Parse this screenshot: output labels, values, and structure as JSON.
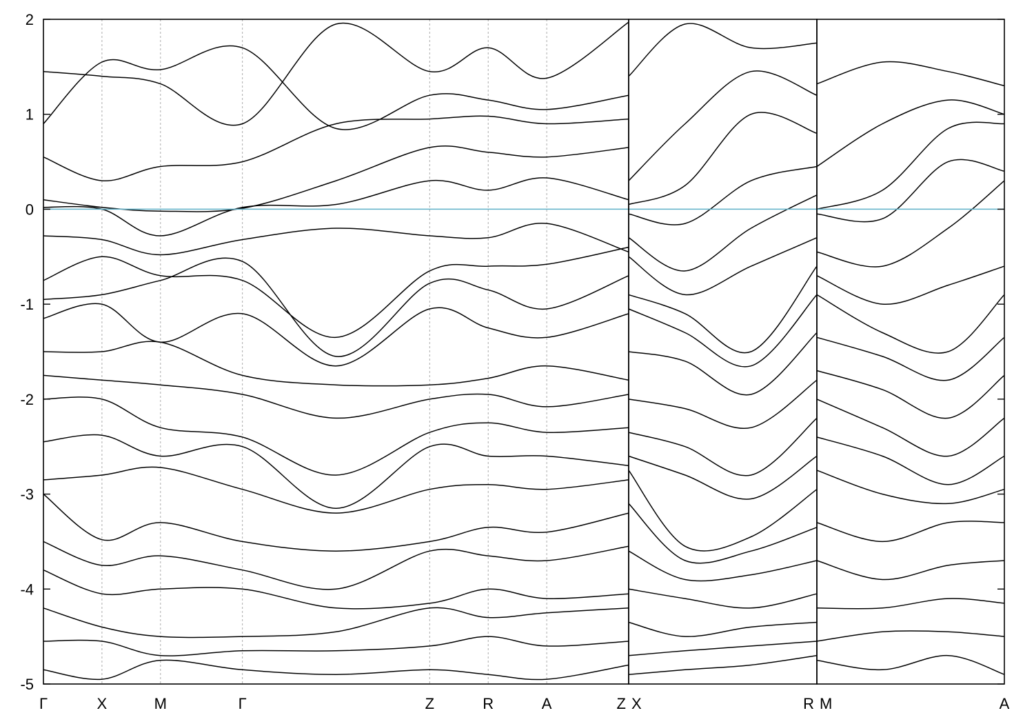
{
  "chart_data": {
    "type": "line",
    "title": "",
    "xlabel": "",
    "ylabel": "",
    "ylim": [
      -5,
      2
    ],
    "yticks": [
      -5,
      -4,
      -3,
      -2,
      -1,
      0,
      1,
      2
    ],
    "ytick_labels": [
      "-5",
      "-4",
      "-3",
      "-2",
      "-1",
      "0",
      "1",
      "2"
    ],
    "fermi_level": 0,
    "grid": "dotted vertical lines at high-symmetry points",
    "panels": [
      {
        "x_range": [
          0,
          10.0
        ],
        "kpoints": [
          {
            "label": "Γ",
            "x": 0
          },
          {
            "label": "X",
            "x": 1.0
          },
          {
            "label": "M",
            "x": 2.0
          },
          {
            "label": "Γ",
            "x": 3.4
          },
          {
            "label": "Z",
            "x": 6.6
          },
          {
            "label": "R",
            "x": 7.6
          },
          {
            "label": "A",
            "x": 8.6
          },
          {
            "label": "Z",
            "x": 10.0
          }
        ],
        "series": [
          {
            "x": [
              0,
              1.0,
              2.0,
              3.4,
              5.0,
              6.6,
              7.6,
              8.6,
              10.0
            ],
            "values": [
              1.45,
              1.4,
              1.32,
              0.9,
              1.95,
              1.45,
              1.7,
              1.38,
              1.97
            ]
          },
          {
            "x": [
              0,
              1.0,
              2.0,
              3.4,
              5.0,
              6.6,
              7.6,
              8.6,
              10.0
            ],
            "values": [
              0.9,
              1.55,
              1.47,
              1.7,
              0.85,
              1.2,
              1.15,
              1.05,
              1.2
            ]
          },
          {
            "x": [
              0,
              1.0,
              2.0,
              3.4,
              5.0,
              6.6,
              7.6,
              8.6,
              10.0
            ],
            "values": [
              0.55,
              0.3,
              0.45,
              0.5,
              0.9,
              0.95,
              0.98,
              0.9,
              0.95
            ]
          },
          {
            "x": [
              0,
              1.0,
              2.0,
              3.4,
              5.0,
              6.6,
              7.6,
              8.6,
              10.0
            ],
            "values": [
              0.1,
              0.02,
              -0.02,
              0.01,
              0.3,
              0.65,
              0.6,
              0.55,
              0.65
            ]
          },
          {
            "x": [
              0,
              1.0,
              2.0,
              3.4,
              5.0,
              6.6,
              7.6,
              8.6,
              10.0
            ],
            "values": [
              0.02,
              0.0,
              -0.28,
              0.02,
              0.05,
              0.3,
              0.2,
              0.33,
              0.1
            ]
          },
          {
            "x": [
              0,
              1.0,
              2.0,
              3.4,
              5.0,
              6.6,
              7.6,
              8.6,
              10.0
            ],
            "values": [
              -0.28,
              -0.32,
              -0.48,
              -0.32,
              -0.2,
              -0.28,
              -0.3,
              -0.15,
              -0.45
            ]
          },
          {
            "x": [
              0,
              1.0,
              2.0,
              3.4,
              5.0,
              6.6,
              7.6,
              8.6,
              10.0
            ],
            "values": [
              -0.75,
              -0.5,
              -0.7,
              -0.75,
              -1.35,
              -0.65,
              -0.6,
              -0.58,
              -0.4
            ]
          },
          {
            "x": [
              0,
              1.0,
              2.0,
              3.4,
              5.0,
              6.6,
              7.6,
              8.6,
              10.0
            ],
            "values": [
              -0.95,
              -0.9,
              -0.75,
              -0.55,
              -1.55,
              -0.78,
              -0.85,
              -1.05,
              -0.7
            ]
          },
          {
            "x": [
              0,
              1.0,
              2.0,
              3.4,
              5.0,
              6.6,
              7.6,
              8.6,
              10.0
            ],
            "values": [
              -1.15,
              -1.0,
              -1.4,
              -1.1,
              -1.65,
              -1.05,
              -1.25,
              -1.35,
              -1.1
            ]
          },
          {
            "x": [
              0,
              1.0,
              2.0,
              3.4,
              5.0,
              6.6,
              7.6,
              8.6,
              10.0
            ],
            "values": [
              -1.5,
              -1.5,
              -1.4,
              -1.75,
              -1.85,
              -1.85,
              -1.78,
              -1.65,
              -1.8
            ]
          },
          {
            "x": [
              0,
              1.0,
              2.0,
              3.4,
              5.0,
              6.6,
              7.6,
              8.6,
              10.0
            ],
            "values": [
              -1.75,
              -1.8,
              -1.85,
              -1.95,
              -2.2,
              -2.0,
              -1.95,
              -2.08,
              -1.95
            ]
          },
          {
            "x": [
              0,
              1.0,
              2.0,
              3.4,
              5.0,
              6.6,
              7.6,
              8.6,
              10.0
            ],
            "values": [
              -2.0,
              -2.0,
              -2.3,
              -2.4,
              -2.8,
              -2.35,
              -2.25,
              -2.35,
              -2.3
            ]
          },
          {
            "x": [
              0,
              1.0,
              2.0,
              3.4,
              5.0,
              6.6,
              7.6,
              8.6,
              10.0
            ],
            "values": [
              -2.45,
              -2.38,
              -2.6,
              -2.5,
              -3.15,
              -2.5,
              -2.6,
              -2.6,
              -2.7
            ]
          },
          {
            "x": [
              0,
              1.0,
              2.0,
              3.4,
              5.0,
              6.6,
              7.6,
              8.6,
              10.0
            ],
            "values": [
              -2.85,
              -2.8,
              -2.72,
              -2.95,
              -3.2,
              -2.95,
              -2.9,
              -2.95,
              -2.85
            ]
          },
          {
            "x": [
              0,
              1.0,
              2.0,
              3.4,
              5.0,
              6.6,
              7.6,
              8.6,
              10.0
            ],
            "values": [
              -3.0,
              -3.48,
              -3.3,
              -3.5,
              -3.6,
              -3.5,
              -3.35,
              -3.4,
              -3.2
            ]
          },
          {
            "x": [
              0,
              1.0,
              2.0,
              3.4,
              5.0,
              6.6,
              7.6,
              8.6,
              10.0
            ],
            "values": [
              -3.5,
              -3.75,
              -3.65,
              -3.8,
              -4.0,
              -3.6,
              -3.65,
              -3.7,
              -3.55
            ]
          },
          {
            "x": [
              0,
              1.0,
              2.0,
              3.4,
              5.0,
              6.6,
              7.6,
              8.6,
              10.0
            ],
            "values": [
              -3.8,
              -4.05,
              -4.0,
              -4.0,
              -4.2,
              -4.15,
              -4.0,
              -4.1,
              -4.05
            ]
          },
          {
            "x": [
              0,
              1.0,
              2.0,
              3.4,
              5.0,
              6.6,
              7.6,
              8.6,
              10.0
            ],
            "values": [
              -4.2,
              -4.4,
              -4.5,
              -4.5,
              -4.45,
              -4.2,
              -4.3,
              -4.25,
              -4.2
            ]
          },
          {
            "x": [
              0,
              1.0,
              2.0,
              3.4,
              5.0,
              6.6,
              7.6,
              8.6,
              10.0
            ],
            "values": [
              -4.55,
              -4.55,
              -4.7,
              -4.65,
              -4.65,
              -4.6,
              -4.5,
              -4.6,
              -4.55
            ]
          },
          {
            "x": [
              0,
              1.0,
              2.0,
              3.4,
              5.0,
              6.6,
              7.6,
              8.6,
              10.0
            ],
            "values": [
              -4.85,
              -4.95,
              -4.75,
              -4.85,
              -4.9,
              -4.85,
              -4.9,
              -4.95,
              -4.8
            ]
          }
        ]
      },
      {
        "x_range": [
          0,
          1.0
        ],
        "kpoints": [
          {
            "label": "X",
            "x": 0
          },
          {
            "label": "R",
            "x": 1.0
          }
        ],
        "series": [
          {
            "x": [
              0,
              0.3,
              0.65,
              1.0
            ],
            "values": [
              1.4,
              1.95,
              1.7,
              1.75
            ]
          },
          {
            "x": [
              0,
              0.3,
              0.65,
              1.0
            ],
            "values": [
              0.3,
              0.9,
              1.45,
              1.2
            ]
          },
          {
            "x": [
              0,
              0.3,
              0.65,
              1.0
            ],
            "values": [
              0.05,
              0.25,
              1.0,
              0.8
            ]
          },
          {
            "x": [
              0,
              0.3,
              0.65,
              1.0
            ],
            "values": [
              -0.05,
              -0.15,
              0.3,
              0.45
            ]
          },
          {
            "x": [
              0,
              0.3,
              0.65,
              1.0
            ],
            "values": [
              -0.3,
              -0.65,
              -0.2,
              0.15
            ]
          },
          {
            "x": [
              0,
              0.3,
              0.65,
              1.0
            ],
            "values": [
              -0.5,
              -0.9,
              -0.6,
              -0.3
            ]
          },
          {
            "x": [
              0,
              0.3,
              0.65,
              1.0
            ],
            "values": [
              -0.9,
              -1.1,
              -1.5,
              -0.6
            ]
          },
          {
            "x": [
              0,
              0.3,
              0.65,
              1.0
            ],
            "values": [
              -1.05,
              -1.3,
              -1.65,
              -0.9
            ]
          },
          {
            "x": [
              0,
              0.3,
              0.65,
              1.0
            ],
            "values": [
              -1.5,
              -1.6,
              -1.95,
              -1.3
            ]
          },
          {
            "x": [
              0,
              0.3,
              0.65,
              1.0
            ],
            "values": [
              -2.0,
              -2.1,
              -2.3,
              -1.8
            ]
          },
          {
            "x": [
              0,
              0.3,
              0.65,
              1.0
            ],
            "values": [
              -2.35,
              -2.5,
              -2.8,
              -2.2
            ]
          },
          {
            "x": [
              0,
              0.3,
              0.65,
              1.0
            ],
            "values": [
              -2.6,
              -2.8,
              -3.05,
              -2.6
            ]
          },
          {
            "x": [
              0,
              0.3,
              0.65,
              1.0
            ],
            "values": [
              -2.75,
              -3.55,
              -3.45,
              -2.95
            ]
          },
          {
            "x": [
              0,
              0.3,
              0.65,
              1.0
            ],
            "values": [
              -3.1,
              -3.7,
              -3.6,
              -3.35
            ]
          },
          {
            "x": [
              0,
              0.3,
              0.65,
              1.0
            ],
            "values": [
              -3.6,
              -3.9,
              -3.85,
              -3.7
            ]
          },
          {
            "x": [
              0,
              0.3,
              0.65,
              1.0
            ],
            "values": [
              -4.0,
              -4.1,
              -4.2,
              -4.05
            ]
          },
          {
            "x": [
              0,
              0.3,
              0.65,
              1.0
            ],
            "values": [
              -4.35,
              -4.5,
              -4.4,
              -4.35
            ]
          },
          {
            "x": [
              0,
              0.3,
              0.65,
              1.0
            ],
            "values": [
              -4.7,
              -4.65,
              -4.6,
              -4.55
            ]
          },
          {
            "x": [
              0,
              0.3,
              0.65,
              1.0
            ],
            "values": [
              -4.9,
              -4.85,
              -4.8,
              -4.7
            ]
          }
        ]
      },
      {
        "x_range": [
          0,
          1.0
        ],
        "kpoints": [
          {
            "label": "M",
            "x": 0
          },
          {
            "label": "A",
            "x": 1.0
          }
        ],
        "series": [
          {
            "x": [
              0,
              0.35,
              0.7,
              1.0
            ],
            "values": [
              1.32,
              1.55,
              1.45,
              1.3
            ]
          },
          {
            "x": [
              0,
              0.35,
              0.7,
              1.0
            ],
            "values": [
              0.45,
              0.9,
              1.15,
              1.0
            ]
          },
          {
            "x": [
              0,
              0.35,
              0.7,
              1.0
            ],
            "values": [
              0.0,
              0.2,
              0.85,
              0.9
            ]
          },
          {
            "x": [
              0,
              0.35,
              0.7,
              1.0
            ],
            "values": [
              -0.05,
              -0.1,
              0.5,
              0.4
            ]
          },
          {
            "x": [
              0,
              0.35,
              0.7,
              1.0
            ],
            "values": [
              -0.45,
              -0.6,
              -0.2,
              0.3
            ]
          },
          {
            "x": [
              0,
              0.35,
              0.7,
              1.0
            ],
            "values": [
              -0.7,
              -1.0,
              -0.8,
              -0.6
            ]
          },
          {
            "x": [
              0,
              0.35,
              0.7,
              1.0
            ],
            "values": [
              -0.9,
              -1.3,
              -1.5,
              -0.9
            ]
          },
          {
            "x": [
              0,
              0.35,
              0.7,
              1.0
            ],
            "values": [
              -1.35,
              -1.55,
              -1.8,
              -1.35
            ]
          },
          {
            "x": [
              0,
              0.35,
              0.7,
              1.0
            ],
            "values": [
              -1.7,
              -1.9,
              -2.2,
              -1.75
            ]
          },
          {
            "x": [
              0,
              0.35,
              0.7,
              1.0
            ],
            "values": [
              -2.0,
              -2.3,
              -2.6,
              -2.2
            ]
          },
          {
            "x": [
              0,
              0.35,
              0.7,
              1.0
            ],
            "values": [
              -2.4,
              -2.6,
              -2.9,
              -2.6
            ]
          },
          {
            "x": [
              0,
              0.35,
              0.7,
              1.0
            ],
            "values": [
              -2.75,
              -3.0,
              -3.1,
              -2.95
            ]
          },
          {
            "x": [
              0,
              0.35,
              0.7,
              1.0
            ],
            "values": [
              -3.3,
              -3.5,
              -3.3,
              -3.3
            ]
          },
          {
            "x": [
              0,
              0.35,
              0.7,
              1.0
            ],
            "values": [
              -3.7,
              -3.9,
              -3.75,
              -3.7
            ]
          },
          {
            "x": [
              0,
              0.35,
              0.7,
              1.0
            ],
            "values": [
              -4.2,
              -4.2,
              -4.1,
              -4.15
            ]
          },
          {
            "x": [
              0,
              0.35,
              0.7,
              1.0
            ],
            "values": [
              -4.55,
              -4.45,
              -4.45,
              -4.5
            ]
          },
          {
            "x": [
              0,
              0.35,
              0.7,
              1.0
            ],
            "values": [
              -4.75,
              -4.85,
              -4.7,
              -4.9
            ]
          }
        ]
      }
    ]
  }
}
